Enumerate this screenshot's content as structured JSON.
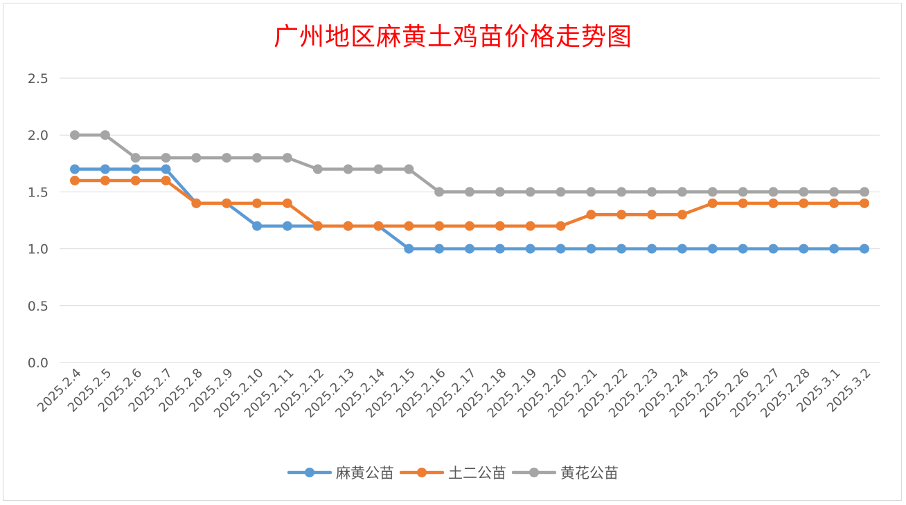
{
  "chart_data": {
    "type": "line",
    "title": "广州地区麻黄土鸡苗价格走势图",
    "xlabel": "",
    "ylabel": "",
    "ylim": [
      0,
      2.5
    ],
    "y_ticks": [
      "0.0",
      "0.5",
      "1.0",
      "1.5",
      "2.0",
      "2.5"
    ],
    "grid": "horizontal",
    "legend_position": "bottom",
    "categories": [
      "2025.2.4",
      "2025.2.5",
      "2025.2.6",
      "2025.2.7",
      "2025.2.8",
      "2025.2.9",
      "2025.2.10",
      "2025.2.11",
      "2025.2.12",
      "2025.2.13",
      "2025.2.14",
      "2025.2.15",
      "2025.2.16",
      "2025.2.17",
      "2025.2.18",
      "2025.2.19",
      "2025.2.20",
      "2025.2.21",
      "2025.2.22",
      "2025.2.23",
      "2025.2.24",
      "2025.2.25",
      "2025.2.26",
      "2025.2.27",
      "2025.2.28",
      "2025.3.1",
      "2025.3.2"
    ],
    "series": [
      {
        "name": "麻黄公苗",
        "color": "#5b9bd5",
        "values": [
          1.7,
          1.7,
          1.7,
          1.7,
          1.4,
          1.4,
          1.2,
          1.2,
          1.2,
          1.2,
          1.2,
          1.0,
          1.0,
          1.0,
          1.0,
          1.0,
          1.0,
          1.0,
          1.0,
          1.0,
          1.0,
          1.0,
          1.0,
          1.0,
          1.0,
          1.0,
          1.0
        ]
      },
      {
        "name": "土二公苗",
        "color": "#ed7d31",
        "values": [
          1.6,
          1.6,
          1.6,
          1.6,
          1.4,
          1.4,
          1.4,
          1.4,
          1.2,
          1.2,
          1.2,
          1.2,
          1.2,
          1.2,
          1.2,
          1.2,
          1.2,
          1.3,
          1.3,
          1.3,
          1.3,
          1.4,
          1.4,
          1.4,
          1.4,
          1.4,
          1.4
        ]
      },
      {
        "name": "黄花公苗",
        "color": "#a5a5a5",
        "values": [
          2.0,
          2.0,
          1.8,
          1.8,
          1.8,
          1.8,
          1.8,
          1.8,
          1.7,
          1.7,
          1.7,
          1.7,
          1.5,
          1.5,
          1.5,
          1.5,
          1.5,
          1.5,
          1.5,
          1.5,
          1.5,
          1.5,
          1.5,
          1.5,
          1.5,
          1.5,
          1.5
        ]
      }
    ]
  }
}
